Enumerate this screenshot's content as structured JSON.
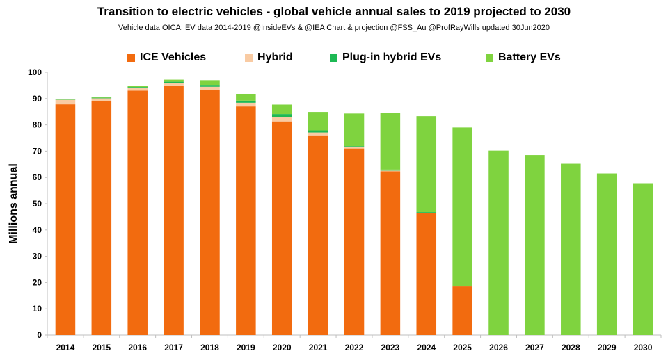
{
  "chart_data": {
    "type": "bar",
    "stacked": true,
    "title": "Transition to electric vehicles  - global vehicle annual sales to 2019 projected to 2030",
    "subtitle": "Vehicle data OICA; EV data 2014-2019 @InsideEVs & @IEA  Chart & projection @FSS_Au @ProfRayWills updated 30Jun2020",
    "xlabel": "",
    "ylabel": "Millions annual",
    "ylim": [
      0,
      100
    ],
    "yticks": [
      0,
      10,
      20,
      30,
      40,
      50,
      60,
      70,
      80,
      90,
      100
    ],
    "grid": false,
    "legend_position": "top",
    "categories": [
      "2014",
      "2015",
      "2016",
      "2017",
      "2018",
      "2019",
      "2020",
      "2021",
      "2022",
      "2023",
      "2024",
      "2025",
      "2026",
      "2027",
      "2028",
      "2029",
      "2030"
    ],
    "series": [
      {
        "name": "ICE Vehicles",
        "color": "#F26B0F",
        "values": [
          87.8,
          89.0,
          93.0,
          95.0,
          93.2,
          87.0,
          81.3,
          76.0,
          71.0,
          62.3,
          46.5,
          18.5,
          0,
          0,
          0,
          0,
          0
        ]
      },
      {
        "name": "Hybrid",
        "color": "#F9CBA3",
        "values": [
          1.7,
          1.1,
          1.1,
          1.0,
          1.3,
          1.4,
          1.5,
          1.1,
          0.5,
          0.3,
          0,
          0,
          0,
          0,
          0,
          0,
          0
        ]
      },
      {
        "name": "Plug-in hybrid EVs",
        "color": "#1DB954",
        "values": [
          0.1,
          0.2,
          0.3,
          0.4,
          0.7,
          0.8,
          1.3,
          0.8,
          0.4,
          0.4,
          0.3,
          0,
          0,
          0,
          0,
          0,
          0
        ]
      },
      {
        "name": "Battery EVs",
        "color": "#7FD33F",
        "values": [
          0.2,
          0.2,
          0.5,
          0.8,
          1.8,
          2.6,
          3.6,
          7.0,
          12.4,
          21.5,
          36.5,
          60.5,
          70.2,
          68.5,
          65.2,
          61.5,
          57.8
        ]
      }
    ]
  }
}
